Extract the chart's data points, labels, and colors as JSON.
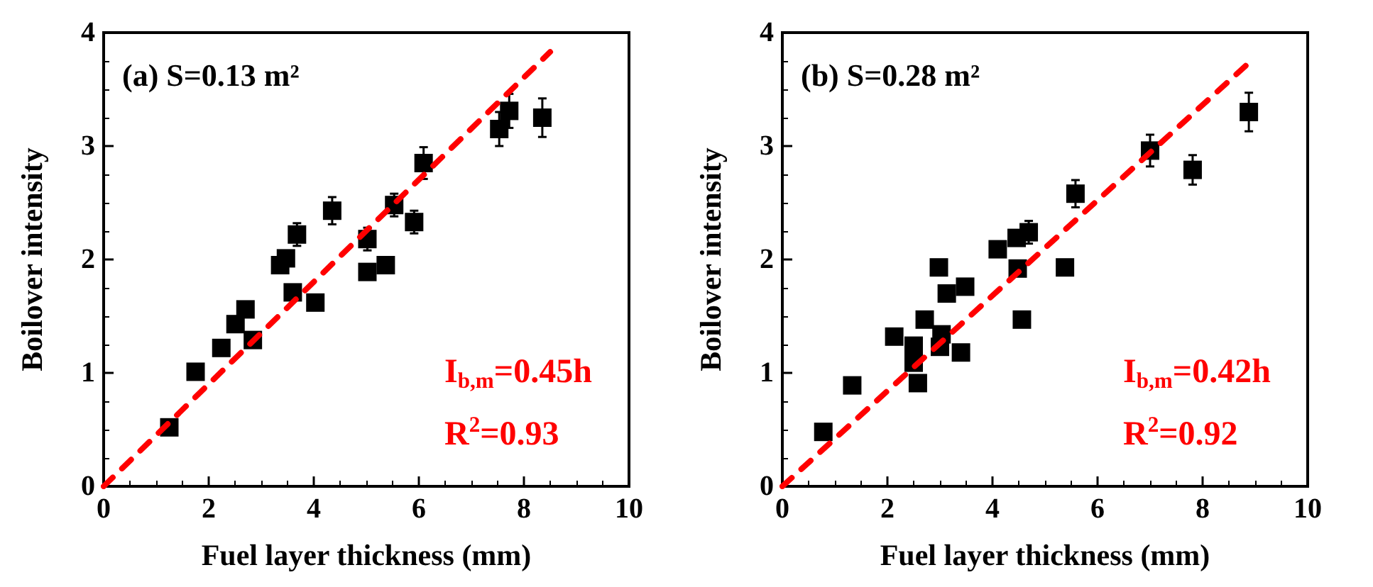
{
  "chart_data": [
    {
      "type": "scatter",
      "title": "(a) S=0.13 m²",
      "xlabel": "Fuel layer thickness (mm)",
      "ylabel": "Boilover intensity",
      "annotations": [
        "I$_{b,m}$=0.45h",
        "R$^{2}$=0.93"
      ],
      "xlim": [
        0,
        10
      ],
      "xticks": [
        0,
        2,
        4,
        6,
        8,
        10
      ],
      "ylim": [
        0,
        4
      ],
      "yticks": [
        0,
        1,
        2,
        3,
        4
      ],
      "grid": false,
      "series": [
        {
          "color": "#000000",
          "marker": "square",
          "x": [
            1.25,
            1.75,
            2.24,
            2.51,
            2.7,
            2.84,
            3.36,
            3.47,
            3.68,
            3.6,
            4.03,
            4.35,
            5.02,
            5.02,
            5.37,
            5.53,
            5.91,
            6.09,
            7.53,
            7.72,
            8.35
          ],
          "values": [
            0.52,
            1.01,
            1.22,
            1.43,
            1.56,
            1.29,
            1.95,
            2.01,
            2.22,
            1.71,
            1.62,
            2.43,
            2.18,
            1.89,
            1.95,
            2.48,
            2.33,
            2.85,
            3.15,
            3.31,
            3.25
          ],
          "errors": [
            null,
            null,
            null,
            null,
            null,
            null,
            null,
            null,
            0.1,
            null,
            null,
            0.12,
            0.1,
            null,
            null,
            0.1,
            0.1,
            0.14,
            0.15,
            0.15,
            0.17
          ]
        },
        {
          "type": "line",
          "color": "#ff0000",
          "line_style": "dashed",
          "x": [
            0,
            8.5
          ],
          "values": [
            0,
            3.83
          ]
        }
      ]
    },
    {
      "type": "scatter",
      "title": "(b) S=0.28 m²",
      "xlabel": "Fuel layer thickness (mm)",
      "ylabel": "Boilover intensity",
      "annotations": [
        "I$_{b,m}$=0.42h",
        "R$^{2}$=0.92"
      ],
      "xlim": [
        0,
        10
      ],
      "xticks": [
        0,
        2,
        4,
        6,
        8,
        10
      ],
      "ylim": [
        0,
        4
      ],
      "yticks": [
        0,
        1,
        2,
        3,
        4
      ],
      "grid": false,
      "series": [
        {
          "color": "#000000",
          "marker": "square",
          "x": [
            0.78,
            1.33,
            2.13,
            2.5,
            2.5,
            2.58,
            2.71,
            2.98,
            3.0,
            3.03,
            3.13,
            3.4,
            3.48,
            4.1,
            4.46,
            4.48,
            4.69,
            4.56,
            5.38,
            5.58,
            7.0,
            7.81,
            8.88
          ],
          "values": [
            0.48,
            0.89,
            1.32,
            1.24,
            1.09,
            0.91,
            1.47,
            1.93,
            1.23,
            1.34,
            1.7,
            1.18,
            1.76,
            2.09,
            2.19,
            1.92,
            2.24,
            1.47,
            1.93,
            2.58,
            2.96,
            2.79,
            3.3
          ],
          "errors": [
            null,
            null,
            null,
            null,
            null,
            null,
            null,
            null,
            null,
            null,
            null,
            null,
            null,
            null,
            null,
            null,
            0.1,
            null,
            null,
            0.12,
            0.14,
            0.13,
            0.17
          ]
        },
        {
          "type": "line",
          "color": "#ff0000",
          "line_style": "dashed",
          "x": [
            0,
            8.85
          ],
          "values": [
            0,
            3.72
          ]
        }
      ]
    }
  ]
}
